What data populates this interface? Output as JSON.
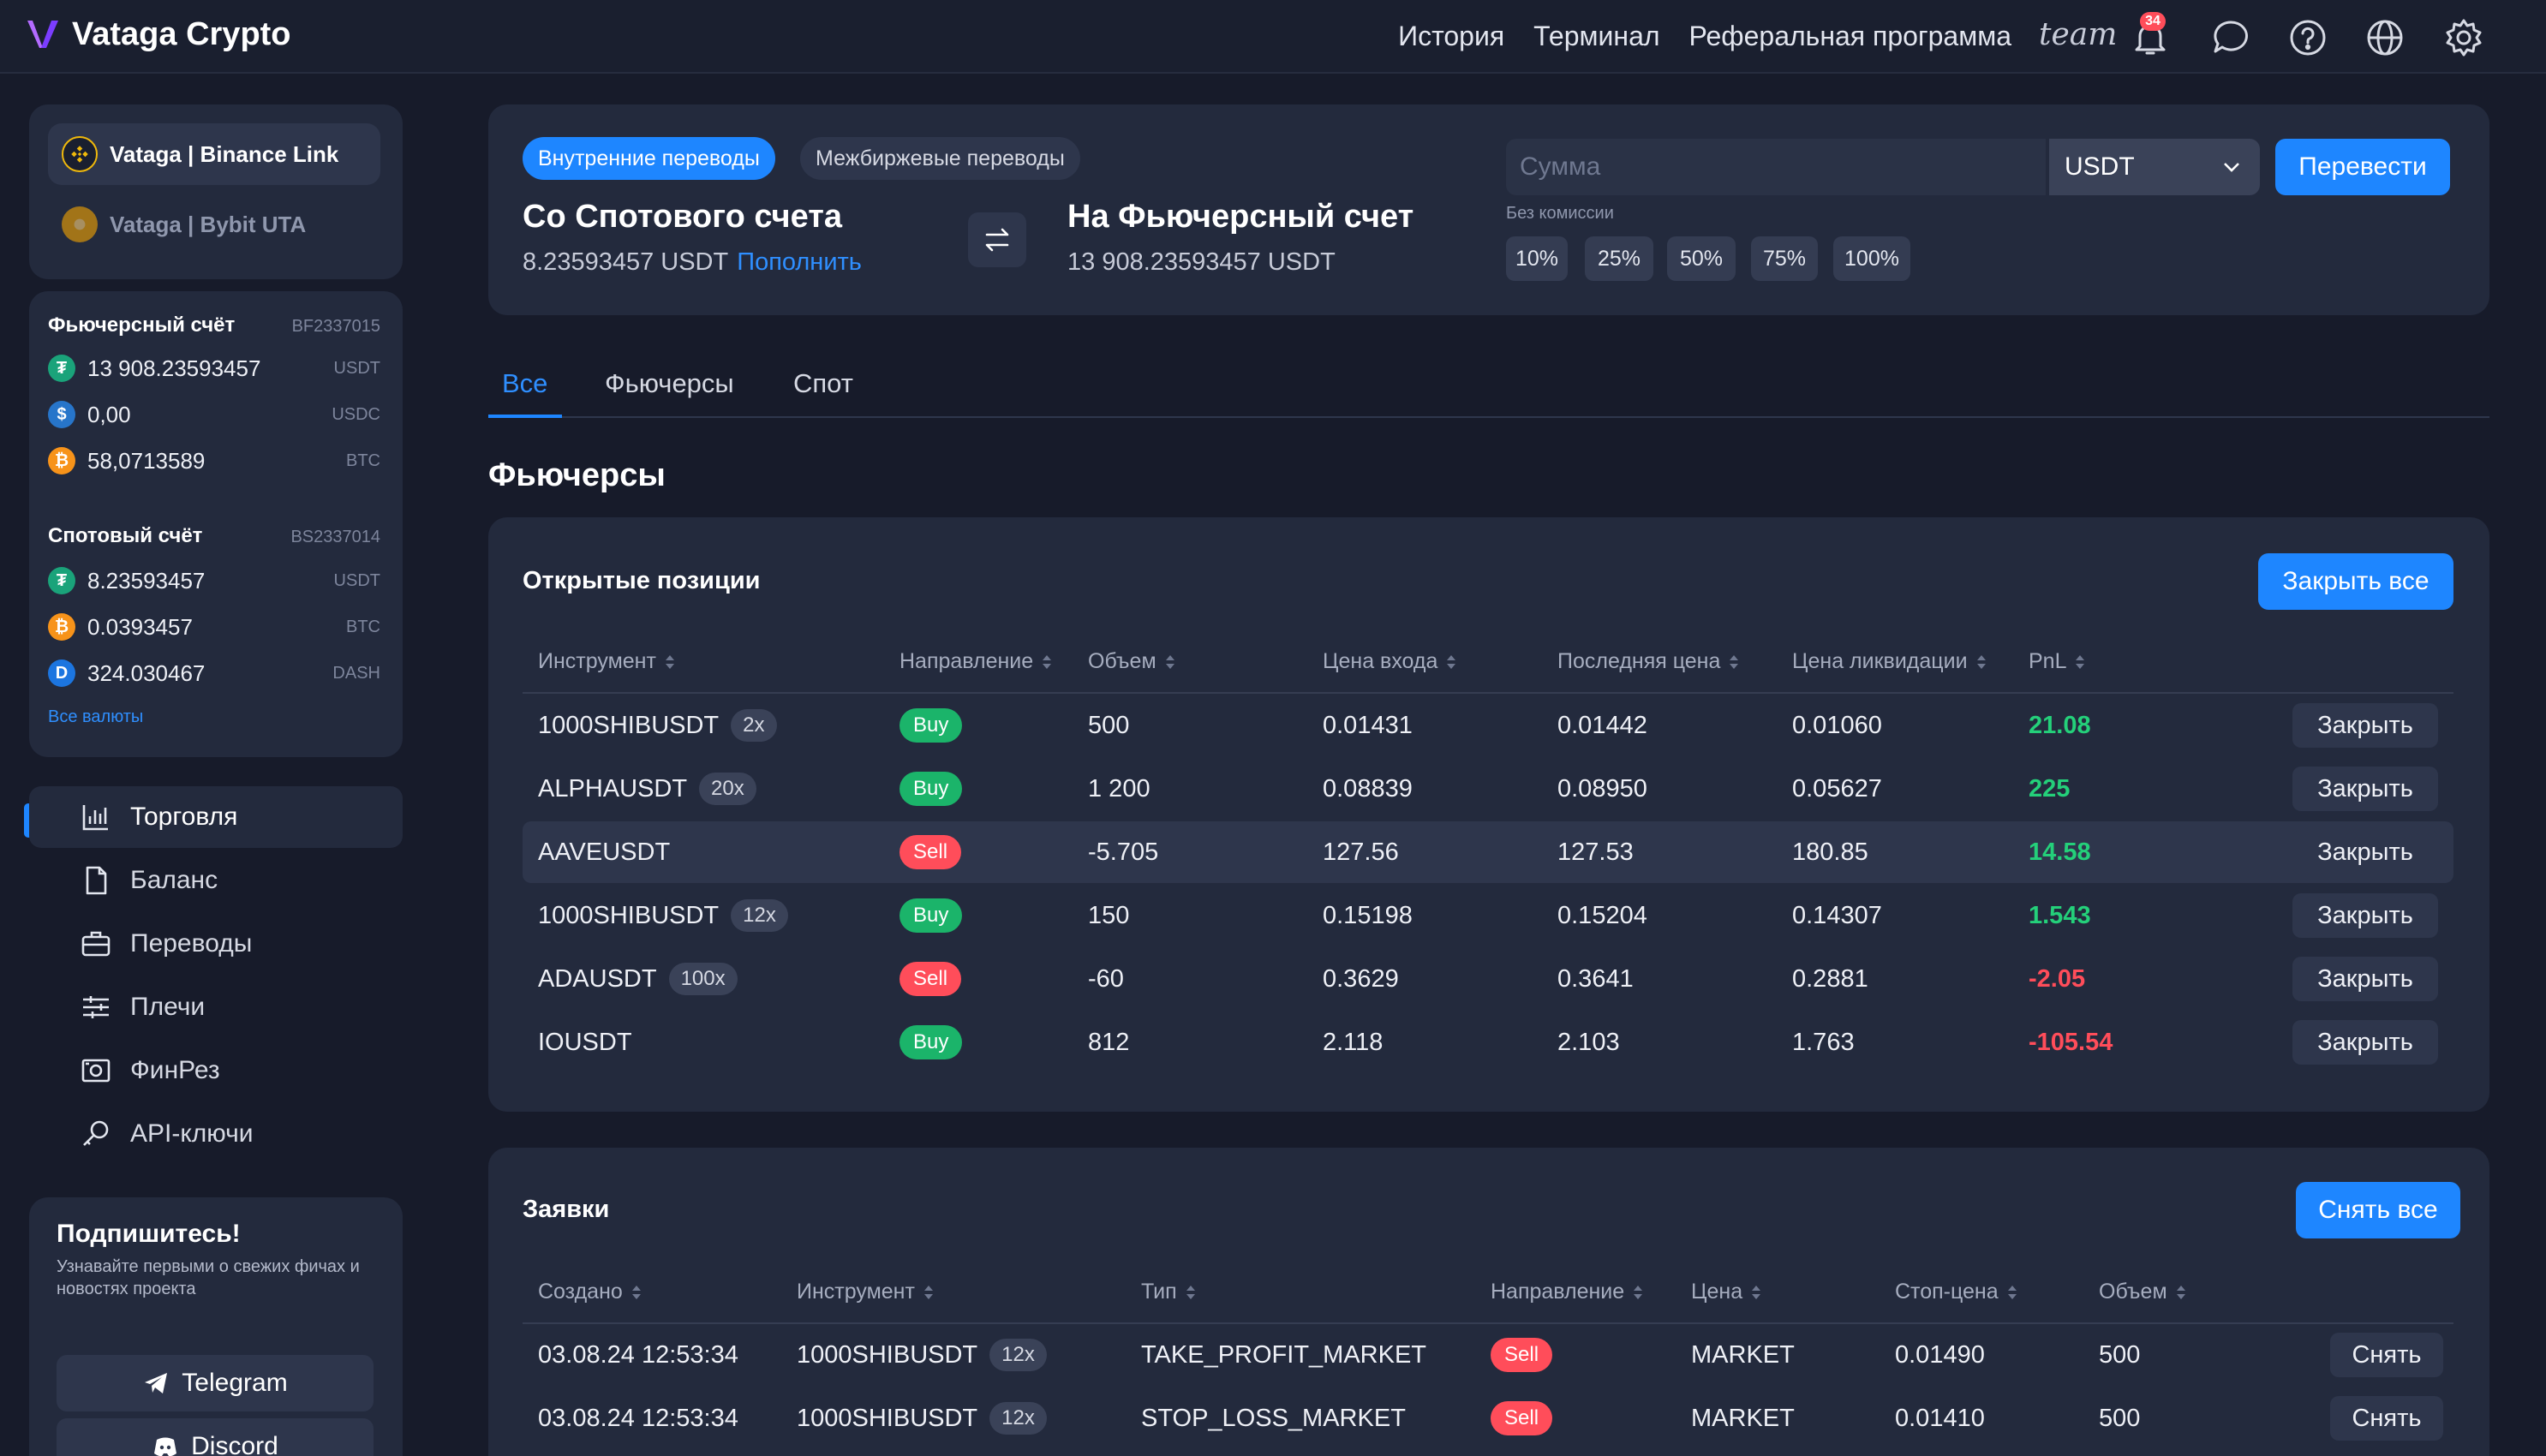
{
  "app": {
    "title": "Vataga Crypto"
  },
  "topnav": {
    "items": [
      "История",
      "Терминал",
      "Реферальная программа"
    ],
    "team_label": "team",
    "notifications_count": "34"
  },
  "colors": {
    "accent": "#1e86ff",
    "buy": "#1bb46a",
    "sell": "#ff4d5a",
    "pnl_positive": "#24d07a",
    "background": "#171b2a",
    "card": "#232a3d"
  },
  "exchanges": [
    {
      "name": "Vataga | Binance Link",
      "icon": "binance-icon",
      "active": true
    },
    {
      "name": "Vataga | Bybit UTA",
      "icon": "bybit-icon",
      "active": false
    }
  ],
  "accounts": {
    "futures": {
      "title": "Фьючерсный счёт",
      "id": "BF2337015",
      "balances": [
        {
          "value": "13 908.23593457",
          "currency": "USDT",
          "icon": "tether-icon"
        },
        {
          "value": "0,00",
          "currency": "USDC",
          "icon": "usdc-icon"
        },
        {
          "value": "58,0713589",
          "currency": "BTC",
          "icon": "bitcoin-icon"
        }
      ]
    },
    "spot": {
      "title": "Спотовый счёт",
      "id": "BS2337014",
      "balances": [
        {
          "value": "8.23593457",
          "currency": "USDT",
          "icon": "tether-icon"
        },
        {
          "value": "0.0393457",
          "currency": "BTC",
          "icon": "bitcoin-icon"
        },
        {
          "value": "324.030467",
          "currency": "DASH",
          "icon": "dash-icon"
        }
      ]
    },
    "all_currencies_link": "Все валюты"
  },
  "sidebar_nav": [
    {
      "label": "Торговля",
      "icon": "chart-bars-icon",
      "active": true
    },
    {
      "label": "Баланс",
      "icon": "document-icon",
      "active": false
    },
    {
      "label": "Переводы",
      "icon": "briefcase-icon",
      "active": false
    },
    {
      "label": "Плечи",
      "icon": "sliders-icon",
      "active": false
    },
    {
      "label": "ФинРез",
      "icon": "camera-icon",
      "active": false
    },
    {
      "label": "API-ключи",
      "icon": "key-icon",
      "active": false
    }
  ],
  "subscribe": {
    "title": "Подпишитесь!",
    "text": "Узнавайте первыми о свежих фичах и новостях проекта",
    "telegram": "Telegram",
    "discord": "Discord"
  },
  "transfer": {
    "tabs": [
      "Внутренние переводы",
      "Межбиржевые переводы"
    ],
    "from_title": "Со Спотового счета",
    "from_balance": "8.23593457 USDT",
    "topup_link": "Пополнить",
    "to_title": "На Фьючерсный счет",
    "to_balance": "13 908.23593457 USDT",
    "amount_placeholder": "Сумма",
    "currency": "USDT",
    "submit": "Перевести",
    "fee_hint": "Без комиссии",
    "percents": [
      "10%",
      "25%",
      "50%",
      "75%",
      "100%"
    ]
  },
  "content_tabs": [
    "Все",
    "Фьючерсы",
    "Спот"
  ],
  "section_title": "Фьючерсы",
  "positions": {
    "title": "Открытые позиции",
    "close_all": "Закрыть все",
    "columns": [
      "Инструмент",
      "Направление",
      "Объем",
      "Цена входа",
      "Последняя цена",
      "Цена ликвидации",
      "PnL"
    ],
    "row_action": "Закрыть",
    "rows": [
      {
        "symbol": "1000SHIBUSDT",
        "leverage": "2x",
        "side": "Buy",
        "volume": "500",
        "entry": "0.01431",
        "last": "0.01442",
        "liq": "0.01060",
        "pnl": "21.08",
        "pnl_sign": "pos"
      },
      {
        "symbol": "ALPHAUSDT",
        "leverage": "20x",
        "side": "Buy",
        "volume": "1 200",
        "entry": "0.08839",
        "last": "0.08950",
        "liq": "0.05627",
        "pnl": "225",
        "pnl_sign": "pos"
      },
      {
        "symbol": "AAVEUSDT",
        "leverage": "",
        "side": "Sell",
        "volume": "-5.705",
        "entry": "127.56",
        "last": "127.53",
        "liq": "180.85",
        "pnl": "14.58",
        "pnl_sign": "pos"
      },
      {
        "symbol": "1000SHIBUSDT",
        "leverage": "12x",
        "side": "Buy",
        "volume": "150",
        "entry": "0.15198",
        "last": "0.15204",
        "liq": "0.14307",
        "pnl": "1.543",
        "pnl_sign": "pos"
      },
      {
        "symbol": "ADAUSDT",
        "leverage": "100x",
        "side": "Sell",
        "volume": "-60",
        "entry": "0.3629",
        "last": "0.3641",
        "liq": "0.2881",
        "pnl": "-2.05",
        "pnl_sign": "neg"
      },
      {
        "symbol": "IOUSDT",
        "leverage": "",
        "side": "Buy",
        "volume": "812",
        "entry": "2.118",
        "last": "2.103",
        "liq": "1.763",
        "pnl": "-105.54",
        "pnl_sign": "neg"
      }
    ]
  },
  "orders": {
    "title": "Заявки",
    "cancel_all": "Снять все",
    "columns": [
      "Создано",
      "Инструмент",
      "Тип",
      "Направление",
      "Цена",
      "Стоп-цена",
      "Объем"
    ],
    "row_action": "Снять",
    "rows": [
      {
        "created": "03.08.24 12:53:34",
        "symbol": "1000SHIBUSDT",
        "leverage": "12x",
        "type": "TAKE_PROFIT_MARKET",
        "side": "Sell",
        "price": "MARKET",
        "stop": "0.01490",
        "volume": "500"
      },
      {
        "created": "03.08.24 12:53:34",
        "symbol": "1000SHIBUSDT",
        "leverage": "12x",
        "type": "STOP_LOSS_MARKET",
        "side": "Sell",
        "price": "MARKET",
        "stop": "0.01410",
        "volume": "500"
      }
    ]
  }
}
